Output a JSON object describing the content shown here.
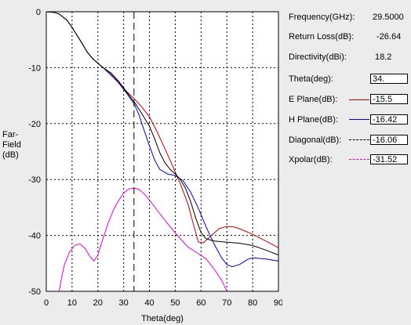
{
  "chart_data": {
    "type": "line",
    "xlabel": "Theta(deg)",
    "ylabel": "Far-Field (dB)",
    "xlim": [
      0,
      90
    ],
    "ylim": [
      -50,
      0
    ],
    "xticks": [
      "0",
      "10",
      "20",
      "30",
      "40",
      "50",
      "60",
      "70",
      "80",
      "90"
    ],
    "yticks": [
      "0",
      "-10",
      "-20",
      "-30",
      "-40",
      "-50"
    ],
    "grid": true,
    "marker_theta": 34,
    "series": [
      {
        "name": "E Plane(dB)",
        "color": "#c00000",
        "style": "solid",
        "points": [
          [
            0,
            0
          ],
          [
            3,
            -0.1
          ],
          [
            5,
            -0.4
          ],
          [
            8,
            -1.5
          ],
          [
            10,
            -2.8
          ],
          [
            13,
            -5
          ],
          [
            16,
            -7.3
          ],
          [
            18,
            -8.4
          ],
          [
            20,
            -9.2
          ],
          [
            22,
            -10
          ],
          [
            25,
            -10.9
          ],
          [
            28,
            -12.4
          ],
          [
            31,
            -14.2
          ],
          [
            34,
            -15.5
          ],
          [
            37,
            -17
          ],
          [
            40,
            -18.8
          ],
          [
            43,
            -21.5
          ],
          [
            46,
            -24.5
          ],
          [
            49,
            -27.6
          ],
          [
            52,
            -30.8
          ],
          [
            55,
            -34.5
          ],
          [
            57,
            -38
          ],
          [
            59,
            -41.2
          ],
          [
            61,
            -41.3
          ],
          [
            64,
            -40
          ],
          [
            67,
            -38.8
          ],
          [
            70,
            -38.4
          ],
          [
            73,
            -38.5
          ],
          [
            76,
            -39
          ],
          [
            80,
            -39.8
          ],
          [
            85,
            -41
          ],
          [
            90,
            -42.2
          ]
        ]
      },
      {
        "name": "H Plane(dB)",
        "color": "#0000c0",
        "style": "solid",
        "points": [
          [
            0,
            0
          ],
          [
            3,
            -0.1
          ],
          [
            5,
            -0.4
          ],
          [
            8,
            -1.5
          ],
          [
            10,
            -2.8
          ],
          [
            13,
            -5
          ],
          [
            16,
            -7.3
          ],
          [
            18,
            -8.4
          ],
          [
            20,
            -9.2
          ],
          [
            22,
            -10
          ],
          [
            25,
            -11.3
          ],
          [
            28,
            -12.7
          ],
          [
            31,
            -14.5
          ],
          [
            34,
            -16.42
          ],
          [
            36,
            -18.5
          ],
          [
            38,
            -21.3
          ],
          [
            40,
            -24
          ],
          [
            42,
            -26.5
          ],
          [
            44,
            -28.2
          ],
          [
            47,
            -29
          ],
          [
            50,
            -29.3
          ],
          [
            53,
            -30.2
          ],
          [
            56,
            -32.3
          ],
          [
            59,
            -35.2
          ],
          [
            62,
            -38.5
          ],
          [
            65,
            -41.5
          ],
          [
            68,
            -44
          ],
          [
            70,
            -45.2
          ],
          [
            72,
            -45.6
          ],
          [
            75,
            -45.2
          ],
          [
            78,
            -44.3
          ],
          [
            80,
            -44
          ],
          [
            85,
            -44.2
          ],
          [
            90,
            -44.6
          ]
        ]
      },
      {
        "name": "Diagonal(dB)",
        "color": "#000000",
        "style": "solid",
        "points": [
          [
            0,
            0
          ],
          [
            3,
            -0.1
          ],
          [
            5,
            -0.4
          ],
          [
            8,
            -1.5
          ],
          [
            10,
            -2.8
          ],
          [
            13,
            -5
          ],
          [
            16,
            -7.3
          ],
          [
            18,
            -8.4
          ],
          [
            20,
            -9.2
          ],
          [
            22,
            -10
          ],
          [
            25,
            -11
          ],
          [
            28,
            -12.5
          ],
          [
            31,
            -14.3
          ],
          [
            34,
            -16.06
          ],
          [
            37,
            -18.2
          ],
          [
            40,
            -20.5
          ],
          [
            42,
            -22.7
          ],
          [
            44,
            -25.2
          ],
          [
            46,
            -27
          ],
          [
            48,
            -28.2
          ],
          [
            50,
            -29
          ],
          [
            52,
            -30
          ],
          [
            54,
            -31.6
          ],
          [
            56,
            -34
          ],
          [
            58,
            -37
          ],
          [
            60,
            -39.5
          ],
          [
            62,
            -40.6
          ],
          [
            65,
            -41
          ],
          [
            70,
            -41.2
          ],
          [
            75,
            -41.4
          ],
          [
            80,
            -41.8
          ],
          [
            85,
            -42.6
          ],
          [
            90,
            -43.5
          ]
        ]
      },
      {
        "name": "Xpolar(dB)",
        "color": "#e000e0",
        "style": "solid",
        "points": [
          [
            5,
            -50
          ],
          [
            6,
            -47.5
          ],
          [
            7,
            -45.3
          ],
          [
            9,
            -43
          ],
          [
            11,
            -41.8
          ],
          [
            13,
            -41.5
          ],
          [
            15,
            -42.3
          ],
          [
            17,
            -43.8
          ],
          [
            18.5,
            -44.6
          ],
          [
            20,
            -43.5
          ],
          [
            22,
            -40.5
          ],
          [
            24,
            -37.8
          ],
          [
            26,
            -35.5
          ],
          [
            28,
            -33.8
          ],
          [
            30,
            -32.4
          ],
          [
            32,
            -31.7
          ],
          [
            34,
            -31.52
          ],
          [
            36,
            -31.8
          ],
          [
            38,
            -32.6
          ],
          [
            40,
            -33.7
          ],
          [
            43,
            -35.5
          ],
          [
            46,
            -37.3
          ],
          [
            49,
            -39
          ],
          [
            52,
            -40.6
          ],
          [
            55,
            -42.1
          ],
          [
            58,
            -43
          ],
          [
            62,
            -44.2
          ],
          [
            65,
            -46
          ],
          [
            68,
            -48
          ],
          [
            70,
            -50
          ]
        ]
      }
    ]
  },
  "panel": {
    "frequency_label": "Frequency(GHz):",
    "frequency_value": "29.5000",
    "return_loss_label": "Return Loss(dB):",
    "return_loss_value": "-26.64",
    "directivity_label": "Directivity(dBi):",
    "directivity_value": "18.2",
    "theta_label": "Theta(deg):",
    "theta_value": "34.",
    "e_plane_label": "E Plane(dB):",
    "e_plane_value": "-15.5",
    "h_plane_label": "H Plane(dB):",
    "h_plane_value": "-16.42",
    "diagonal_label": "Diagonal(dB):",
    "diagonal_value": "-16.06",
    "xpolar_label": "Xpolar(dB):",
    "xpolar_value": "-31.52"
  }
}
